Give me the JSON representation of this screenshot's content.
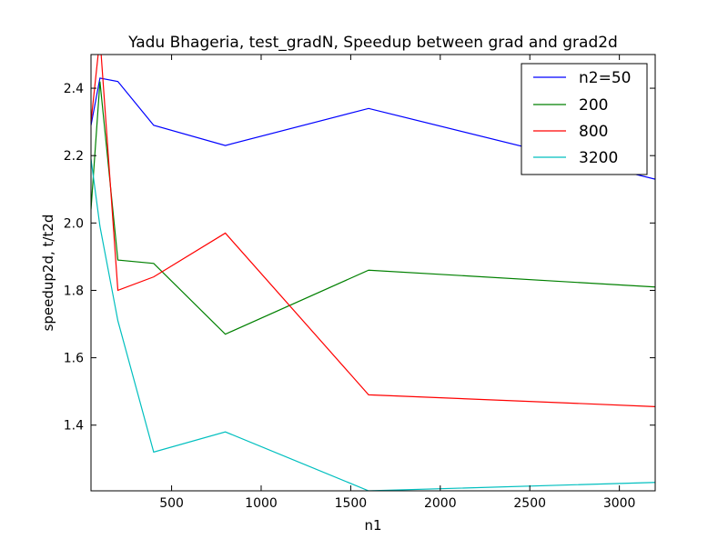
{
  "chart_data": {
    "type": "line",
    "title": "Yadu Bhageria, test_gradN, Speedup between grad and grad2d",
    "xlabel": "n1",
    "ylabel": "speedup2d, t/t2d",
    "xlim": [
      50,
      3200
    ],
    "ylim": [
      1.205,
      2.5
    ],
    "x": [
      50,
      100,
      200,
      400,
      800,
      1600,
      3200
    ],
    "xticks": [
      500,
      1000,
      1500,
      2000,
      2500,
      3000
    ],
    "xtick_labels": [
      "500",
      "1000",
      "1500",
      "2000",
      "2500",
      "3000"
    ],
    "yticks": [
      1.4,
      1.6,
      1.8,
      2.0,
      2.2,
      2.4
    ],
    "ytick_labels": [
      "1.4",
      "1.6",
      "1.8",
      "2.0",
      "2.2",
      "2.4"
    ],
    "grid": false,
    "legend_position": "top-right",
    "series": [
      {
        "name": "n2=50",
        "color": "#0000ff",
        "values": [
          2.29,
          2.43,
          2.42,
          2.29,
          2.23,
          2.34,
          2.13
        ]
      },
      {
        "name": "200",
        "color": "#008000",
        "values": [
          2.04,
          2.42,
          1.89,
          1.88,
          1.67,
          1.86,
          1.81
        ]
      },
      {
        "name": "800",
        "color": "#ff0000",
        "values": [
          2.3,
          2.55,
          1.8,
          1.84,
          1.97,
          1.49,
          1.455
        ]
      },
      {
        "name": "3200",
        "color": "#00bfbf",
        "values": [
          2.19,
          1.99,
          1.71,
          1.32,
          1.38,
          1.205,
          1.23
        ]
      }
    ]
  }
}
